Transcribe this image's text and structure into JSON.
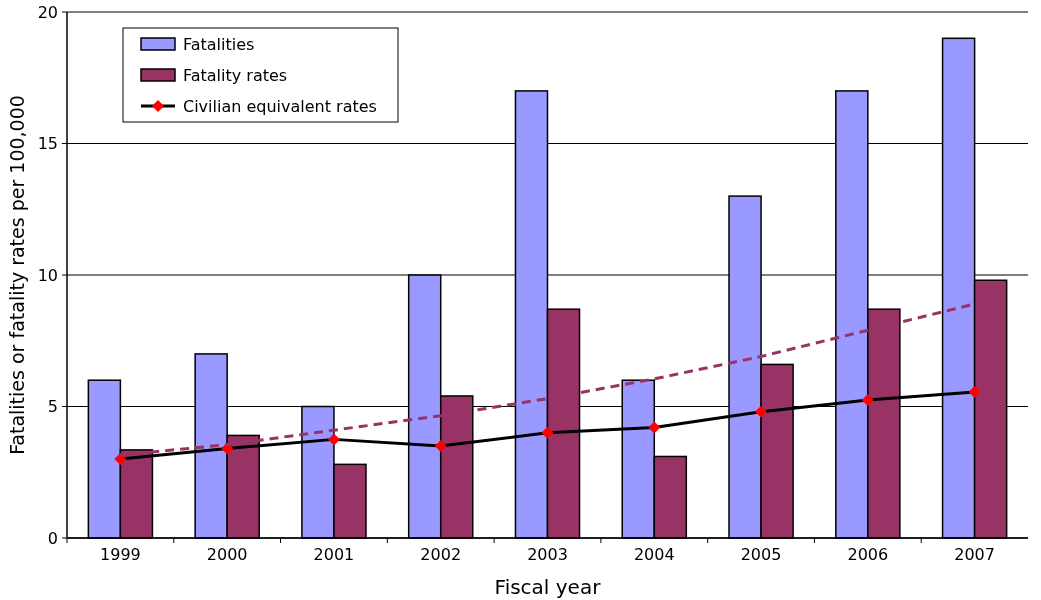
{
  "chart_data": {
    "type": "bar",
    "xlabel": "Fiscal year",
    "ylabel": "Fatalities or fatality rates per 100,000",
    "categories": [
      "1999",
      "2000",
      "2001",
      "2002",
      "2003",
      "2004",
      "2005",
      "2006",
      "2007"
    ],
    "series": [
      {
        "name": "Fatalities",
        "color": "#9999ff",
        "values": [
          6.0,
          7.0,
          5.0,
          10.0,
          17.0,
          6.0,
          13.0,
          17.0,
          19.0
        ]
      },
      {
        "name": "Fatality rates",
        "color": "#993366",
        "values": [
          3.35,
          3.9,
          2.8,
          5.4,
          8.7,
          3.1,
          6.6,
          8.7,
          9.8
        ]
      },
      {
        "name": "Civilian equivalent rates",
        "type": "line",
        "color": "#000000",
        "marker": "diamond",
        "colors": [
          "#ff0000",
          "#ff0000",
          "#ff0000",
          "#ff0000",
          "#ff0000",
          "#ff0000",
          "#ff0000",
          "#ff0000",
          "#ff0000"
        ],
        "values": [
          3.0,
          3.4,
          3.75,
          3.5,
          4.0,
          4.2,
          4.8,
          5.25,
          5.55
        ]
      },
      {
        "type": "line",
        "color": "#993366",
        "line_style": "dashed",
        "marker": "none",
        "values": [
          3.15,
          3.55,
          4.1,
          4.65,
          5.3,
          6.05,
          6.9,
          7.9,
          8.9
        ]
      }
    ],
    "ylim": [
      0,
      20
    ],
    "yticks": [
      0,
      5,
      10,
      15,
      20
    ],
    "grid": "y",
    "legend": "top left"
  }
}
